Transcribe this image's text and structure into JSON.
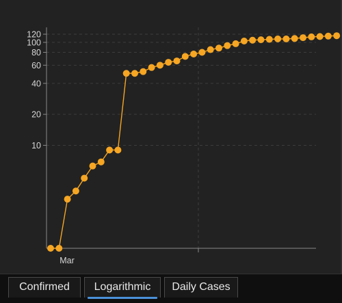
{
  "chart_data": {
    "type": "line",
    "scale": "log",
    "color": "#f6a623",
    "x_tick_labels": [
      "Mar"
    ],
    "y_ticks": [
      10,
      20,
      40,
      60,
      80,
      100,
      120
    ],
    "grid": true,
    "series": [
      {
        "values": [
          1,
          1,
          3,
          3.6,
          4.8,
          6.3,
          6.9,
          9,
          9,
          50,
          50,
          52,
          57,
          60,
          64,
          66,
          73,
          77,
          80,
          85,
          88,
          93,
          97,
          103,
          105,
          106,
          107,
          108,
          108,
          109,
          111,
          113,
          114,
          115,
          116
        ]
      }
    ]
  },
  "tabs": [
    {
      "label": "Confirmed"
    },
    {
      "label": "Logarithmic"
    },
    {
      "label": "Daily Cases"
    }
  ],
  "active_tab": 1
}
